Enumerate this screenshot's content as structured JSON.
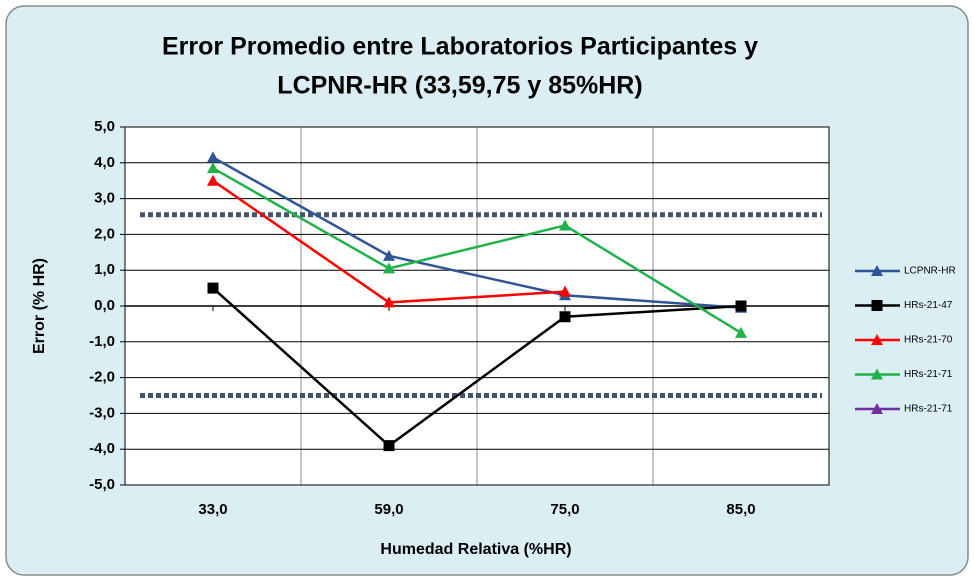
{
  "chart_data": {
    "type": "line",
    "title": [
      "Error Promedio entre Laboratorios Participantes y",
      "LCPNR-HR (33,59,75 y 85%HR)"
    ],
    "x_label": "Humedad Relativa (%HR)",
    "y_label": "Error (% HR)",
    "categories": [
      "33,0",
      "59,0",
      "75,0",
      "85,0"
    ],
    "series": [
      {
        "name": "LCPNR-HR",
        "color": "#2f5597",
        "marker": "triangle",
        "values": [
          4.15,
          1.4,
          0.3,
          -0.05
        ]
      },
      {
        "name": "HRs-21-47",
        "color": "#000000",
        "marker": "square",
        "values": [
          0.5,
          -3.9,
          -0.3,
          0.0
        ]
      },
      {
        "name": "HRs-21-70",
        "color": "#ff0000",
        "marker": "triangle",
        "values": [
          3.5,
          0.1,
          0.4,
          null
        ]
      },
      {
        "name": "HRs-21-71",
        "color": "#1fb24a",
        "marker": "triangle",
        "values": [
          3.85,
          1.05,
          2.25,
          -0.75
        ]
      },
      {
        "name": "HRs-21-71",
        "color": "#7030a0",
        "marker": "triangle",
        "values": [
          null,
          null,
          null,
          null
        ]
      }
    ],
    "reference_lines": [
      2.55,
      -2.5
    ],
    "reference_color": "#44546a",
    "ylim": [
      -5,
      5
    ],
    "yticks": [
      {
        "value": -5,
        "label": "-5,0"
      },
      {
        "value": -4,
        "label": "-4,0"
      },
      {
        "value": -3,
        "label": "-3,0"
      },
      {
        "value": -2,
        "label": "-2,0"
      },
      {
        "value": -1,
        "label": "-1,0"
      },
      {
        "value": 0,
        "label": "0,0"
      },
      {
        "value": 1,
        "label": "1,0"
      },
      {
        "value": 2,
        "label": "2,0"
      },
      {
        "value": 3,
        "label": "3,0"
      },
      {
        "value": 4,
        "label": "4,0"
      },
      {
        "value": 5,
        "label": "5,0"
      }
    ],
    "grid": true,
    "legend": "right"
  }
}
